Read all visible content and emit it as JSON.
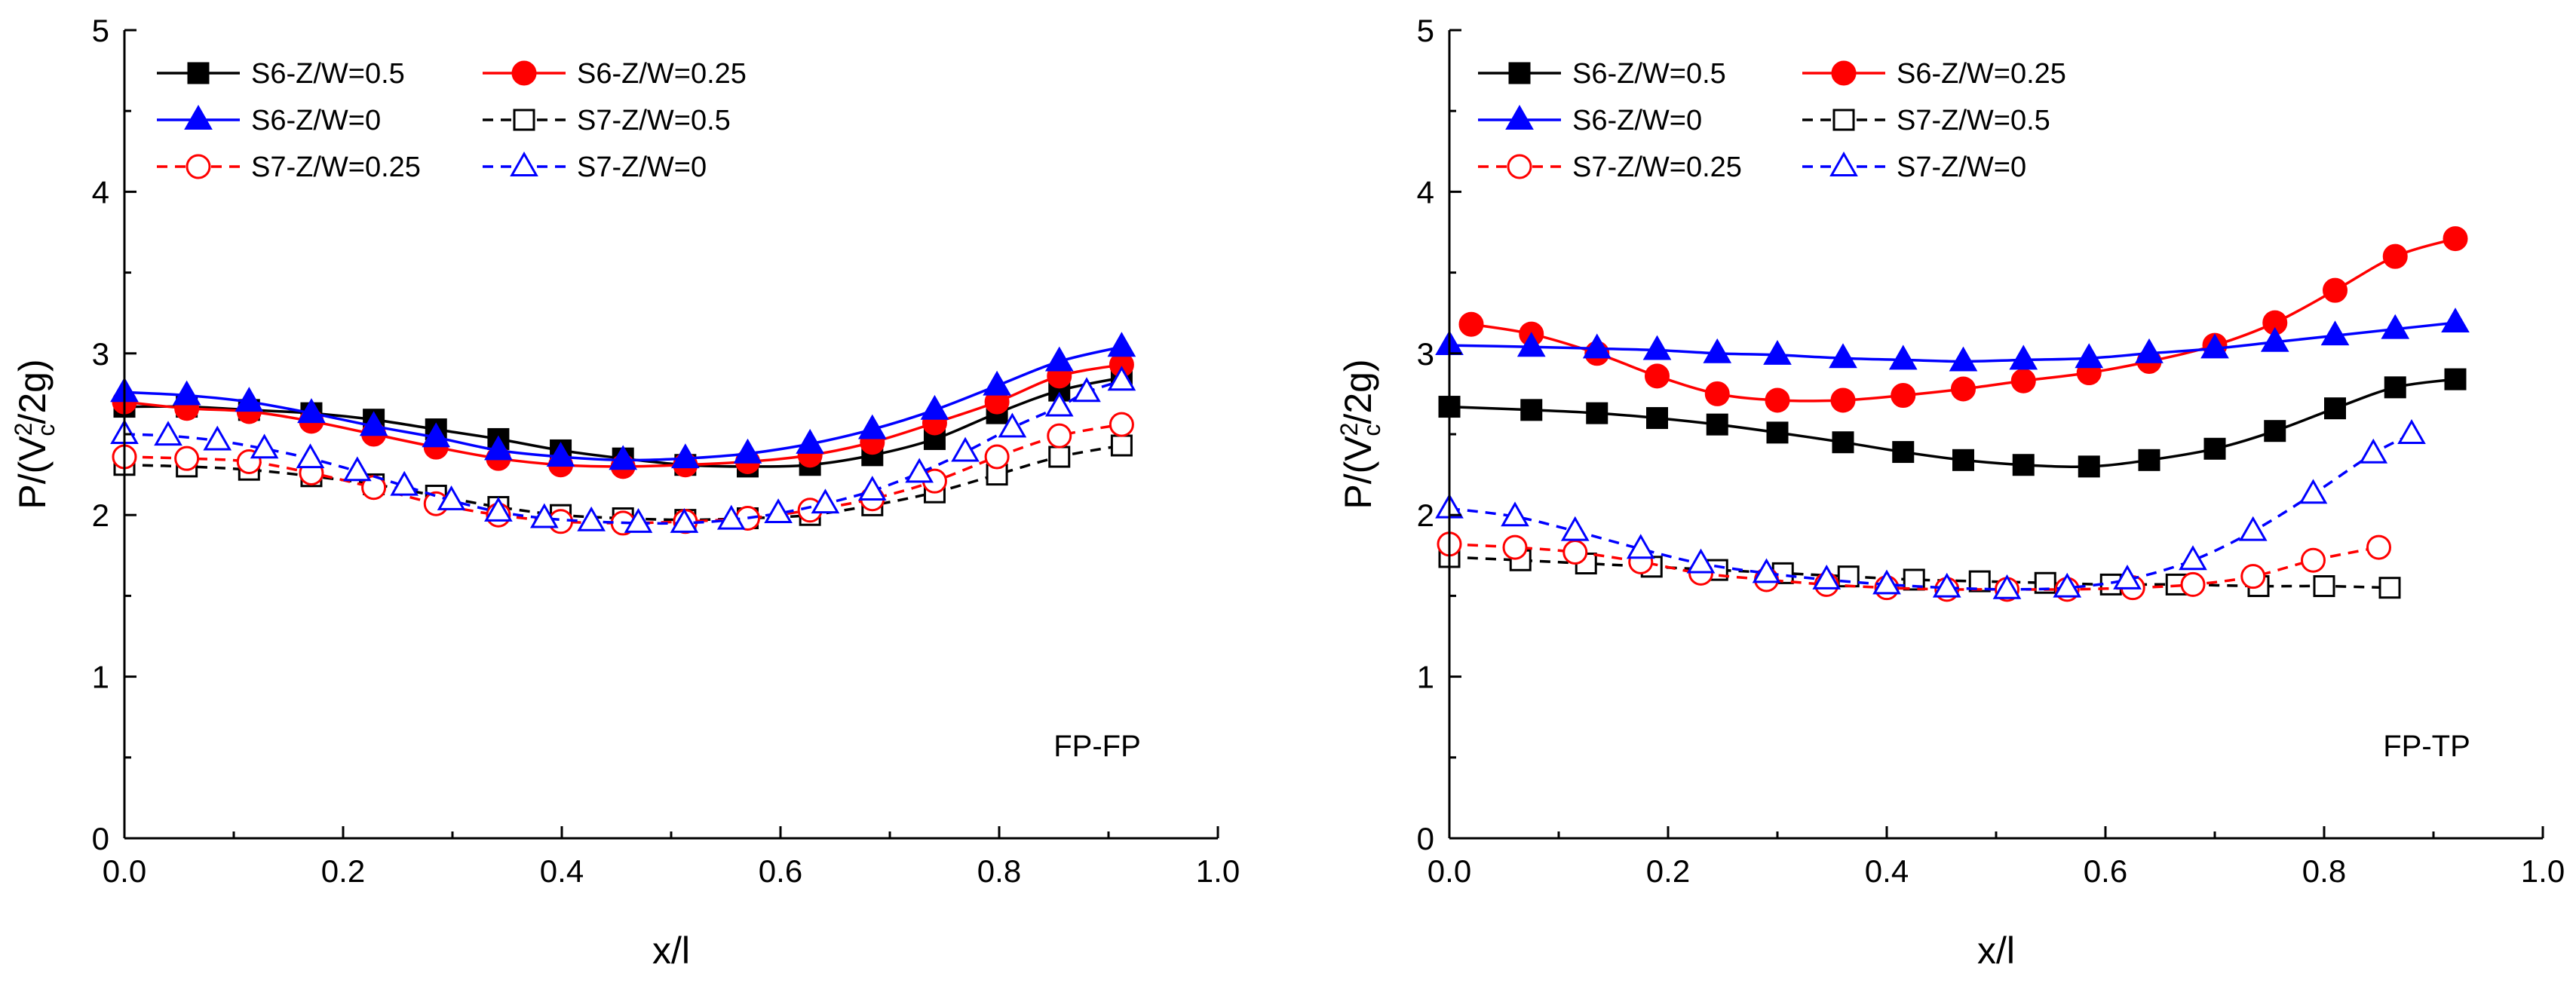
{
  "chart_data": [
    {
      "type": "line",
      "panel_label": "FP-FP",
      "xlabel": "x/l",
      "ylabel": {
        "base": "P/(V",
        "sup": "2",
        "sub": "c",
        "tail": "/2g)"
      },
      "xlim": [
        0.0,
        1.0
      ],
      "ylim": [
        0,
        5
      ],
      "xticks": [
        0.0,
        0.2,
        0.4,
        0.6,
        0.8,
        1.0
      ],
      "xtick_labels": [
        "0.0",
        "0.2",
        "0.4",
        "0.6",
        "0.8",
        "1.0"
      ],
      "yticks": [
        0,
        1,
        2,
        3,
        4,
        5
      ],
      "ytick_labels": [
        "0",
        "1",
        "2",
        "3",
        "4",
        "5"
      ],
      "grid": false,
      "legend_position": "top-left",
      "series": [
        {
          "name": "S6-Z/W=0.5",
          "color": "#000000",
          "marker": "square",
          "filled": true,
          "dash": "solid",
          "x": [
            0.0,
            0.057,
            0.114,
            0.171,
            0.228,
            0.285,
            0.342,
            0.399,
            0.456,
            0.513,
            0.57,
            0.627,
            0.684,
            0.741,
            0.798,
            0.855,
            0.912
          ],
          "y": [
            2.67,
            2.67,
            2.65,
            2.63,
            2.59,
            2.53,
            2.47,
            2.4,
            2.35,
            2.31,
            2.3,
            2.31,
            2.37,
            2.47,
            2.63,
            2.77,
            2.85
          ]
        },
        {
          "name": "S6-Z/W=0.25",
          "color": "#ff0000",
          "marker": "circle",
          "filled": true,
          "dash": "solid",
          "x": [
            0.0,
            0.057,
            0.114,
            0.171,
            0.228,
            0.285,
            0.342,
            0.399,
            0.456,
            0.513,
            0.57,
            0.627,
            0.684,
            0.741,
            0.798,
            0.855,
            0.912
          ],
          "y": [
            2.7,
            2.66,
            2.64,
            2.58,
            2.5,
            2.42,
            2.35,
            2.31,
            2.3,
            2.31,
            2.33,
            2.37,
            2.45,
            2.57,
            2.7,
            2.86,
            2.93
          ]
        },
        {
          "name": "S6-Z/W=0",
          "color": "#0000ff",
          "marker": "triangle",
          "filled": true,
          "dash": "solid",
          "x": [
            0.0,
            0.057,
            0.114,
            0.171,
            0.228,
            0.285,
            0.342,
            0.399,
            0.456,
            0.513,
            0.57,
            0.627,
            0.684,
            0.741,
            0.798,
            0.855,
            0.912
          ],
          "y": [
            2.76,
            2.74,
            2.7,
            2.63,
            2.55,
            2.48,
            2.4,
            2.36,
            2.34,
            2.35,
            2.38,
            2.44,
            2.53,
            2.65,
            2.8,
            2.95,
            3.04
          ]
        },
        {
          "name": "S7-Z/W=0.5",
          "color": "#000000",
          "marker": "square",
          "filled": false,
          "dash": "dashed",
          "x": [
            0.0,
            0.057,
            0.114,
            0.171,
            0.228,
            0.285,
            0.342,
            0.399,
            0.456,
            0.513,
            0.57,
            0.627,
            0.684,
            0.741,
            0.798,
            0.855,
            0.912
          ],
          "y": [
            2.31,
            2.3,
            2.28,
            2.24,
            2.19,
            2.12,
            2.05,
            2.0,
            1.98,
            1.97,
            1.98,
            2.0,
            2.06,
            2.14,
            2.25,
            2.36,
            2.43
          ]
        },
        {
          "name": "S7-Z/W=0.25",
          "color": "#ff0000",
          "marker": "circle",
          "filled": false,
          "dash": "dashed",
          "x": [
            0.0,
            0.057,
            0.114,
            0.171,
            0.228,
            0.285,
            0.342,
            0.399,
            0.456,
            0.513,
            0.57,
            0.627,
            0.684,
            0.741,
            0.798,
            0.855,
            0.912
          ],
          "y": [
            2.36,
            2.35,
            2.33,
            2.26,
            2.17,
            2.07,
            2.0,
            1.96,
            1.95,
            1.96,
            1.98,
            2.03,
            2.1,
            2.21,
            2.36,
            2.49,
            2.56
          ]
        },
        {
          "name": "S7-Z/W=0",
          "color": "#0000ff",
          "marker": "triangle",
          "filled": false,
          "dash": "dashed",
          "x": [
            0.0,
            0.04,
            0.085,
            0.128,
            0.17,
            0.213,
            0.256,
            0.299,
            0.342,
            0.384,
            0.427,
            0.47,
            0.512,
            0.555,
            0.598,
            0.641,
            0.684,
            0.727,
            0.769,
            0.812,
            0.855,
            0.88,
            0.912
          ],
          "y": [
            2.5,
            2.49,
            2.46,
            2.41,
            2.35,
            2.27,
            2.18,
            2.09,
            2.02,
            1.98,
            1.96,
            1.95,
            1.95,
            1.97,
            2.01,
            2.07,
            2.15,
            2.26,
            2.39,
            2.54,
            2.67,
            2.76,
            2.83
          ]
        }
      ]
    },
    {
      "type": "line",
      "panel_label": "FP-TP",
      "xlabel": "x/l",
      "ylabel": {
        "base": "P/(V",
        "sup": "2",
        "sub": "c",
        "tail": "/2g)"
      },
      "xlim": [
        0.0,
        1.0
      ],
      "ylim": [
        0,
        5
      ],
      "xticks": [
        0.0,
        0.2,
        0.4,
        0.6,
        0.8,
        1.0
      ],
      "xtick_labels": [
        "0.0",
        "0.2",
        "0.4",
        "0.6",
        "0.8",
        "1.0"
      ],
      "yticks": [
        0,
        1,
        2,
        3,
        4,
        5
      ],
      "ytick_labels": [
        "0",
        "1",
        "2",
        "3",
        "4",
        "5"
      ],
      "grid": false,
      "legend_position": "top-left",
      "series": [
        {
          "name": "S6-Z/W=0.5",
          "color": "#000000",
          "marker": "square",
          "filled": true,
          "dash": "solid",
          "x": [
            0.0,
            0.075,
            0.135,
            0.19,
            0.245,
            0.3,
            0.36,
            0.415,
            0.47,
            0.525,
            0.585,
            0.64,
            0.7,
            0.755,
            0.81,
            0.865,
            0.92
          ],
          "y": [
            2.67,
            2.65,
            2.63,
            2.6,
            2.56,
            2.51,
            2.45,
            2.39,
            2.34,
            2.31,
            2.3,
            2.34,
            2.41,
            2.52,
            2.66,
            2.79,
            2.84
          ]
        },
        {
          "name": "S6-Z/W=0.25",
          "color": "#ff0000",
          "marker": "circle",
          "filled": true,
          "dash": "solid",
          "x": [
            0.02,
            0.075,
            0.135,
            0.19,
            0.245,
            0.3,
            0.36,
            0.415,
            0.47,
            0.525,
            0.585,
            0.64,
            0.7,
            0.755,
            0.81,
            0.865,
            0.92
          ],
          "y": [
            3.18,
            3.12,
            3.0,
            2.86,
            2.75,
            2.71,
            2.71,
            2.74,
            2.78,
            2.83,
            2.88,
            2.95,
            3.05,
            3.19,
            3.39,
            3.6,
            3.71
          ]
        },
        {
          "name": "S6-Z/W=0",
          "color": "#0000ff",
          "marker": "triangle",
          "filled": true,
          "dash": "solid",
          "x": [
            0.0,
            0.075,
            0.135,
            0.19,
            0.245,
            0.3,
            0.36,
            0.415,
            0.47,
            0.525,
            0.585,
            0.64,
            0.7,
            0.755,
            0.81,
            0.865,
            0.92
          ],
          "y": [
            3.05,
            3.04,
            3.03,
            3.02,
            3.0,
            2.99,
            2.97,
            2.96,
            2.95,
            2.96,
            2.97,
            3.0,
            3.03,
            3.07,
            3.11,
            3.15,
            3.19
          ]
        },
        {
          "name": "S7-Z/W=0.5",
          "color": "#000000",
          "marker": "square",
          "filled": false,
          "dash": "dashed",
          "x": [
            0.0,
            0.065,
            0.125,
            0.185,
            0.245,
            0.305,
            0.365,
            0.425,
            0.485,
            0.545,
            0.605,
            0.665,
            0.74,
            0.8,
            0.86
          ],
          "y": [
            1.74,
            1.72,
            1.7,
            1.68,
            1.66,
            1.64,
            1.62,
            1.6,
            1.59,
            1.58,
            1.57,
            1.57,
            1.56,
            1.56,
            1.55
          ]
        },
        {
          "name": "S7-Z/W=0.25",
          "color": "#ff0000",
          "marker": "circle",
          "filled": false,
          "dash": "dashed",
          "x": [
            0.0,
            0.06,
            0.115,
            0.175,
            0.23,
            0.29,
            0.345,
            0.4,
            0.455,
            0.51,
            0.565,
            0.625,
            0.68,
            0.735,
            0.79,
            0.85
          ],
          "y": [
            1.82,
            1.8,
            1.77,
            1.71,
            1.64,
            1.6,
            1.57,
            1.55,
            1.54,
            1.54,
            1.54,
            1.55,
            1.57,
            1.62,
            1.72,
            1.8
          ]
        },
        {
          "name": "S7-Z/W=0",
          "color": "#0000ff",
          "marker": "triangle",
          "filled": false,
          "dash": "dashed",
          "x": [
            0.0,
            0.06,
            0.115,
            0.175,
            0.23,
            0.29,
            0.345,
            0.4,
            0.455,
            0.51,
            0.565,
            0.62,
            0.68,
            0.735,
            0.79,
            0.845,
            0.88
          ],
          "y": [
            2.04,
            1.99,
            1.9,
            1.79,
            1.7,
            1.64,
            1.6,
            1.57,
            1.55,
            1.54,
            1.55,
            1.6,
            1.72,
            1.9,
            2.13,
            2.38,
            2.5
          ]
        }
      ]
    }
  ]
}
